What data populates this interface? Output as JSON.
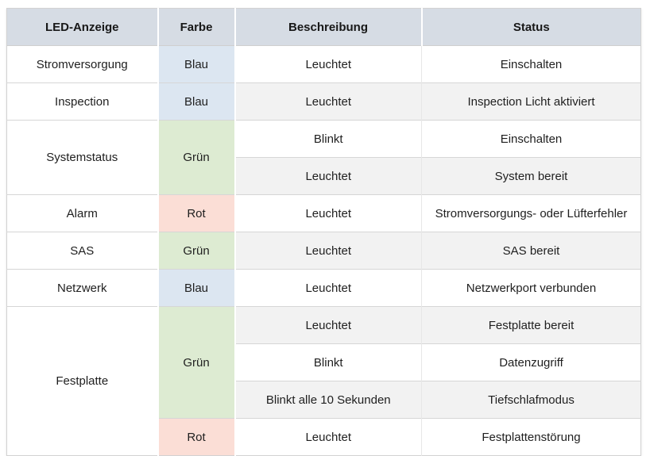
{
  "header": {
    "led": "LED-Anzeige",
    "farbe": "Farbe",
    "beschreibung": "Beschreibung",
    "status": "Status"
  },
  "colors": {
    "header_bg": "#d6dce4",
    "blue": "#dce6f1",
    "green": "#ddebd2",
    "red": "#fbded6",
    "band": "#f2f2f2"
  },
  "rows": [
    {
      "led": "Stromversorgung",
      "farbe": "Blau",
      "beschreibung": "Leuchtet",
      "status": "Einschalten"
    },
    {
      "led": "Inspection",
      "farbe": "Blau",
      "beschreibung": "Leuchtet",
      "status": "Inspection Licht aktiviert"
    },
    {
      "led": "Systemstatus",
      "farbe": "Grün",
      "beschreibung": "Blinkt",
      "status": "Einschalten"
    },
    {
      "beschreibung": "Leuchtet",
      "status": "System bereit"
    },
    {
      "led": "Alarm",
      "farbe": "Rot",
      "beschreibung": "Leuchtet",
      "status": "Stromversorgungs- oder Lüfterfehler"
    },
    {
      "led": "SAS",
      "farbe": "Grün",
      "beschreibung": "Leuchtet",
      "status": "SAS bereit"
    },
    {
      "led": "Netzwerk",
      "farbe": "Blau",
      "beschreibung": "Leuchtet",
      "status": "Netzwerkport verbunden"
    },
    {
      "led": "Festplatte",
      "farbe": "Grün",
      "beschreibung": "Leuchtet",
      "status": "Festplatte bereit"
    },
    {
      "beschreibung": "Blinkt",
      "status": "Datenzugriff"
    },
    {
      "beschreibung": "Blinkt alle 10 Sekunden",
      "status": "Tiefschlafmodus"
    },
    {
      "farbe": "Rot",
      "beschreibung": "Leuchtet",
      "status": "Festplattenstörung"
    }
  ]
}
